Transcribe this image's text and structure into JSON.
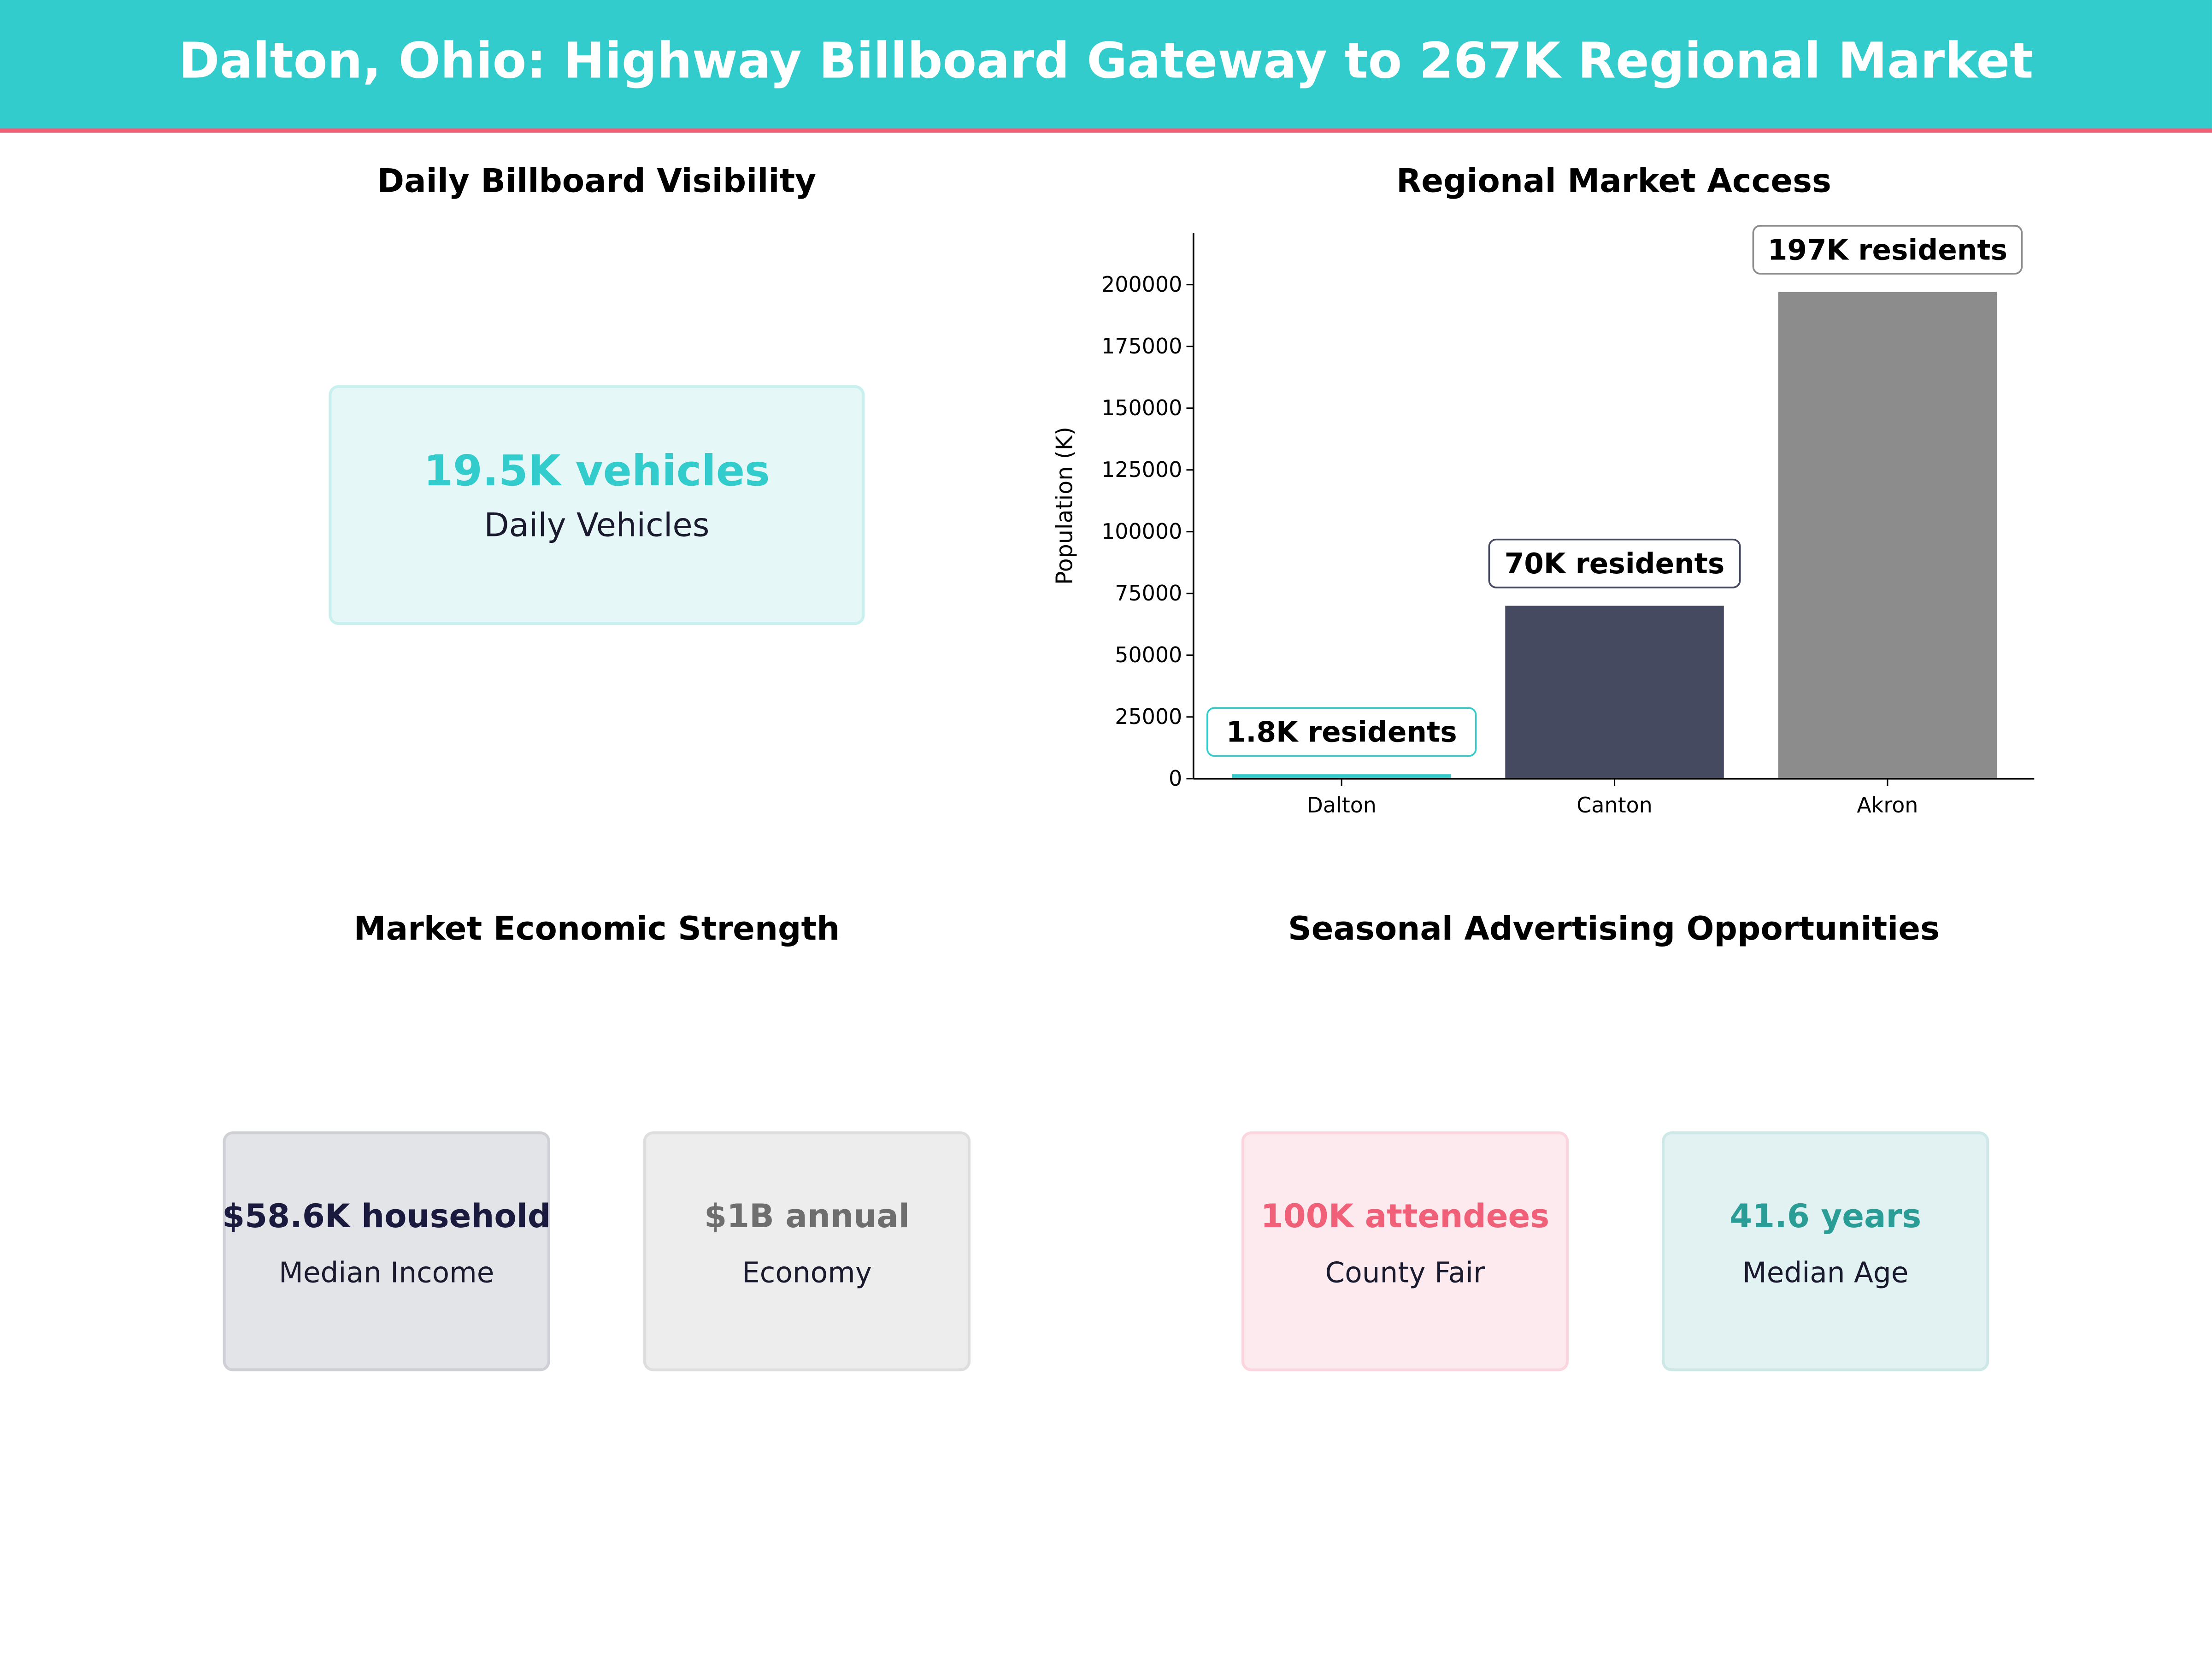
{
  "title": "Dalton, Ohio: Highway Billboard Gateway to 267K Regional Market",
  "colors": {
    "header": "#33cccc",
    "accent_line": "#f06078"
  },
  "panels": {
    "visibility": {
      "title": "Daily Billboard Visibility",
      "value": "19.5K vehicles",
      "label": "Daily Vehicles",
      "color": "#33cccc"
    },
    "economic": {
      "title": "Market Economic Strength",
      "cards": [
        {
          "value": "$58.6K household",
          "label": "Median Income",
          "color": "#1a1a3e"
        },
        {
          "value": "$1B annual",
          "label": "Economy",
          "color": "#6e6e6e"
        }
      ]
    },
    "seasonal": {
      "title": "Seasonal Advertising Opportunities",
      "cards": [
        {
          "value": "100K attendees",
          "label": "County Fair",
          "color": "#f06078"
        },
        {
          "value": "41.6 years",
          "label": "Median Age",
          "color": "#2a9d96"
        }
      ]
    }
  },
  "chart_data": {
    "type": "bar",
    "title": "Regional Market Access",
    "ylabel": "Population (K)",
    "xlabel": "",
    "categories": [
      "Dalton",
      "Canton",
      "Akron"
    ],
    "values": [
      1800,
      70000,
      197000
    ],
    "data_labels": [
      "1.8K residents",
      "70K residents",
      "197K residents"
    ],
    "colors": [
      "#33cccc",
      "#464a60",
      "#8c8c8c"
    ],
    "ylim": [
      0,
      221000
    ],
    "yticks": [
      "0",
      "25000",
      "50000",
      "75000",
      "100000",
      "125000",
      "150000",
      "175000",
      "200000"
    ],
    "grid": false
  }
}
